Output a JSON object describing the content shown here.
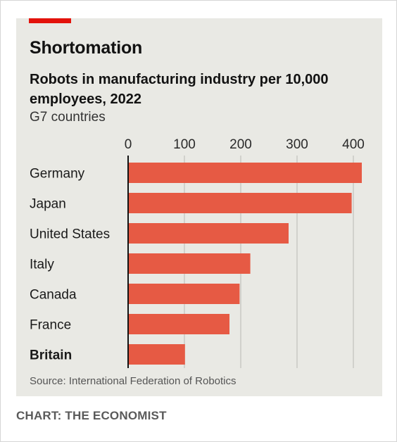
{
  "header": {
    "title": "Shortomation",
    "subtitle": "Robots in manufacturing industry per 10,000 employees, 2022",
    "subtitle2": "G7 countries"
  },
  "footer": {
    "source": "Source: International Federation of Robotics",
    "credit": "CHART: THE ECONOMIST"
  },
  "colors": {
    "bar": "#e65a44",
    "accent": "#e3120b",
    "grid": "#c9c9c4",
    "axis": "#121212",
    "background": "#e9e9e4"
  },
  "chart_data": {
    "type": "bar",
    "orientation": "horizontal",
    "categories": [
      "Germany",
      "Japan",
      "United States",
      "Italy",
      "Canada",
      "France",
      "Britain"
    ],
    "highlight": "Britain",
    "values": [
      415,
      397,
      285,
      217,
      198,
      180,
      101
    ],
    "xlim": [
      0,
      420
    ],
    "xticks": [
      0,
      100,
      200,
      300,
      400
    ],
    "tick_position": "top",
    "grid": true
  }
}
